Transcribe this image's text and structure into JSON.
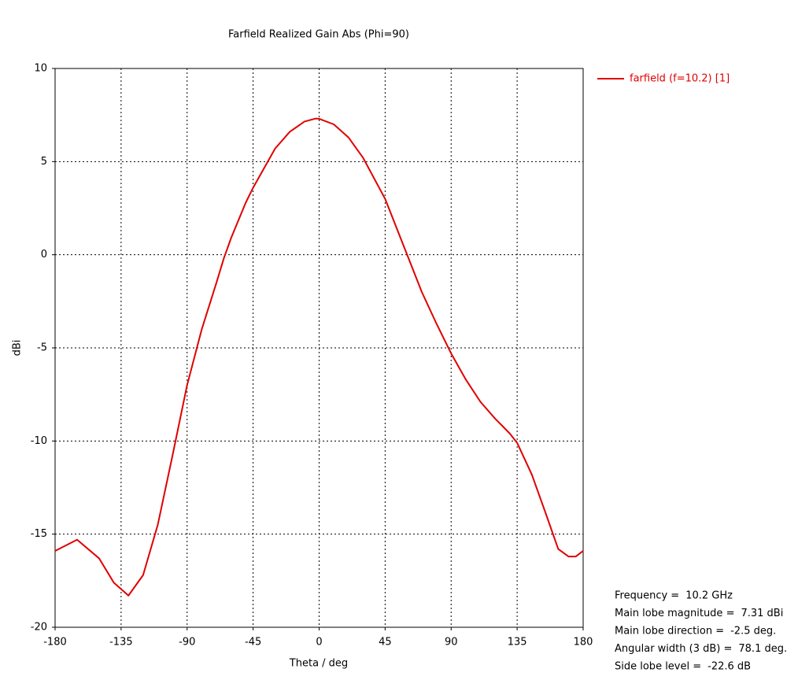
{
  "chart_data": {
    "type": "line",
    "title": "Farfield Realized Gain Abs (Phi=90)",
    "x_label": "Theta / deg",
    "y_label": "dBi",
    "x": [
      -180,
      -165,
      -150,
      -140,
      -130,
      -120,
      -110,
      -100,
      -90,
      -80,
      -70,
      -65,
      -60,
      -50,
      -45,
      -30,
      -20,
      -10,
      -2.5,
      0,
      10,
      20,
      30,
      45,
      60,
      70,
      80,
      90,
      100,
      110,
      120,
      130,
      135,
      145,
      155,
      163,
      170,
      175,
      180
    ],
    "series": [
      {
        "name": "farfield (f=10.2) [1]",
        "color": "#e00000",
        "values": [
          -15.9,
          -15.3,
          -16.3,
          -17.6,
          -18.3,
          -17.2,
          -14.5,
          -10.8,
          -7.0,
          -4.0,
          -1.5,
          -0.2,
          0.9,
          2.8,
          3.6,
          5.7,
          6.6,
          7.15,
          7.31,
          7.3,
          7.0,
          6.3,
          5.2,
          3.0,
          0,
          -2.0,
          -3.7,
          -5.3,
          -6.7,
          -7.9,
          -8.8,
          -9.6,
          -10.1,
          -11.8,
          -14.0,
          -15.8,
          -16.2,
          -16.2,
          -15.9
        ]
      }
    ],
    "xlim": [
      -180,
      180
    ],
    "xticks": [
      -180,
      -135,
      -90,
      -45,
      0,
      45,
      90,
      135,
      180
    ],
    "ylim": [
      -20,
      10
    ],
    "yticks": [
      -20,
      -15,
      -10,
      -5,
      0,
      5,
      10
    ],
    "grid": true,
    "legend": "outside-right",
    "annotations": [
      {
        "label": "Frequency =",
        "value": "10.2 GHz"
      },
      {
        "label": "Main lobe magnitude =",
        "value": "7.31 dBi"
      },
      {
        "label": "Main lobe direction =",
        "value": "-2.5 deg."
      },
      {
        "label": "Angular width (3 dB) =",
        "value": "78.1 deg."
      },
      {
        "label": "Side lobe level =",
        "value": "-22.6 dB"
      }
    ]
  }
}
